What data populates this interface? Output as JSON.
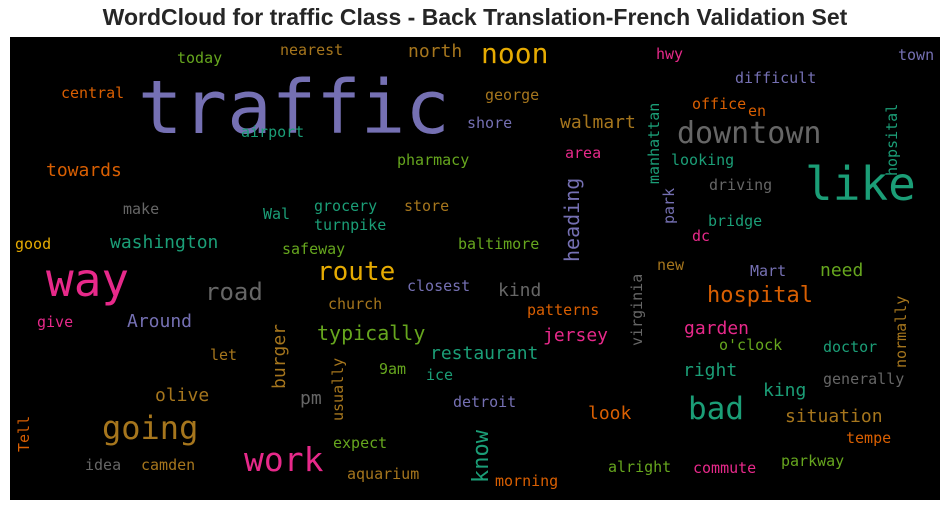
{
  "title": "WordCloud for traffic Class - Back Translation-French Validation Set",
  "words": [
    {
      "text": "traffic",
      "color": "#7570b3"
    },
    {
      "text": "like",
      "color": "#1b9e77"
    },
    {
      "text": "way",
      "color": "#e7298a"
    },
    {
      "text": "noon",
      "color": "#e6ab02"
    },
    {
      "text": "downtown",
      "color": "#666666"
    },
    {
      "text": "route",
      "color": "#e6ab02"
    },
    {
      "text": "going",
      "color": "#a6761d"
    },
    {
      "text": "work",
      "color": "#e7298a"
    },
    {
      "text": "bad",
      "color": "#1b9e77"
    },
    {
      "text": "hospital",
      "color": "#d95f02"
    },
    {
      "text": "road",
      "color": "#666666"
    },
    {
      "text": "washington",
      "color": "#1b9e77"
    },
    {
      "text": "towards",
      "color": "#d95f02"
    },
    {
      "text": "walmart",
      "color": "#a6761d"
    },
    {
      "text": "north",
      "color": "#a6761d"
    },
    {
      "text": "typically",
      "color": "#66a61e"
    },
    {
      "text": "restaurant",
      "color": "#1b9e77"
    },
    {
      "text": "jersey",
      "color": "#e7298a"
    },
    {
      "text": "garden",
      "color": "#e7298a"
    },
    {
      "text": "situation",
      "color": "#a6761d"
    },
    {
      "text": "know",
      "color": "#1b9e77"
    },
    {
      "text": "heading",
      "color": "#7570b3"
    },
    {
      "text": "burger",
      "color": "#a6761d"
    },
    {
      "text": "Around",
      "color": "#7570b3"
    },
    {
      "text": "olive",
      "color": "#a6761d"
    },
    {
      "text": "look",
      "color": "#d95f02"
    },
    {
      "text": "right",
      "color": "#1b9e77"
    },
    {
      "text": "king",
      "color": "#1b9e77"
    },
    {
      "text": "need",
      "color": "#66a61e"
    },
    {
      "text": "kind",
      "color": "#666666"
    },
    {
      "text": "pm",
      "color": "#666666"
    },
    {
      "text": "pharmacy",
      "color": "#66a61e"
    },
    {
      "text": "george",
      "color": "#a6761d"
    },
    {
      "text": "shore",
      "color": "#7570b3"
    },
    {
      "text": "area",
      "color": "#e7298a"
    },
    {
      "text": "looking",
      "color": "#1b9e77"
    },
    {
      "text": "driving",
      "color": "#666666"
    },
    {
      "text": "bridge",
      "color": "#1b9e77"
    },
    {
      "text": "dc",
      "color": "#e7298a"
    },
    {
      "text": "park",
      "color": "#7570b3"
    },
    {
      "text": "manhattan",
      "color": "#1b9e77"
    },
    {
      "text": "office",
      "color": "#d95f02"
    },
    {
      "text": "en",
      "color": "#d95f02"
    },
    {
      "text": "difficult",
      "color": "#7570b3"
    },
    {
      "text": "hwy",
      "color": "#e7298a"
    },
    {
      "text": "town",
      "color": "#7570b3"
    },
    {
      "text": "hopsital",
      "color": "#1b9e77"
    },
    {
      "text": "today",
      "color": "#66a61e"
    },
    {
      "text": "nearest",
      "color": "#a6761d"
    },
    {
      "text": "central",
      "color": "#d95f02"
    },
    {
      "text": "airport",
      "color": "#1b9e77"
    },
    {
      "text": "make",
      "color": "#666666"
    },
    {
      "text": "Wal",
      "color": "#1b9e77"
    },
    {
      "text": "grocery",
      "color": "#1b9e77"
    },
    {
      "text": "store",
      "color": "#a6761d"
    },
    {
      "text": "turnpike",
      "color": "#1b9e77"
    },
    {
      "text": "safeway",
      "color": "#66a61e"
    },
    {
      "text": "baltimore",
      "color": "#66a61e"
    },
    {
      "text": "good",
      "color": "#e6ab02"
    },
    {
      "text": "closest",
      "color": "#7570b3"
    },
    {
      "text": "church",
      "color": "#a6761d"
    },
    {
      "text": "patterns",
      "color": "#d95f02"
    },
    {
      "text": "give",
      "color": "#e7298a"
    },
    {
      "text": "let",
      "color": "#a6761d"
    },
    {
      "text": "9am",
      "color": "#66a61e"
    },
    {
      "text": "ice",
      "color": "#1b9e77"
    },
    {
      "text": "usually",
      "color": "#a6761d"
    },
    {
      "text": "detroit",
      "color": "#7570b3"
    },
    {
      "text": "expect",
      "color": "#66a61e"
    },
    {
      "text": "Tell",
      "color": "#d95f02"
    },
    {
      "text": "idea",
      "color": "#666666"
    },
    {
      "text": "camden",
      "color": "#a6761d"
    },
    {
      "text": "aquarium",
      "color": "#a6761d"
    },
    {
      "text": "morning",
      "color": "#d95f02"
    },
    {
      "text": "alright",
      "color": "#66a61e"
    },
    {
      "text": "commute",
      "color": "#e7298a"
    },
    {
      "text": "parkway",
      "color": "#66a61e"
    },
    {
      "text": "tempe",
      "color": "#d95f02"
    },
    {
      "text": "generally",
      "color": "#666666"
    },
    {
      "text": "doctor",
      "color": "#1b9e77"
    },
    {
      "text": "o'clock",
      "color": "#66a61e"
    },
    {
      "text": "normally",
      "color": "#a6761d"
    },
    {
      "text": "Mart",
      "color": "#7570b3"
    },
    {
      "text": "new",
      "color": "#a6761d"
    },
    {
      "text": "virginia",
      "color": "#666666"
    }
  ]
}
